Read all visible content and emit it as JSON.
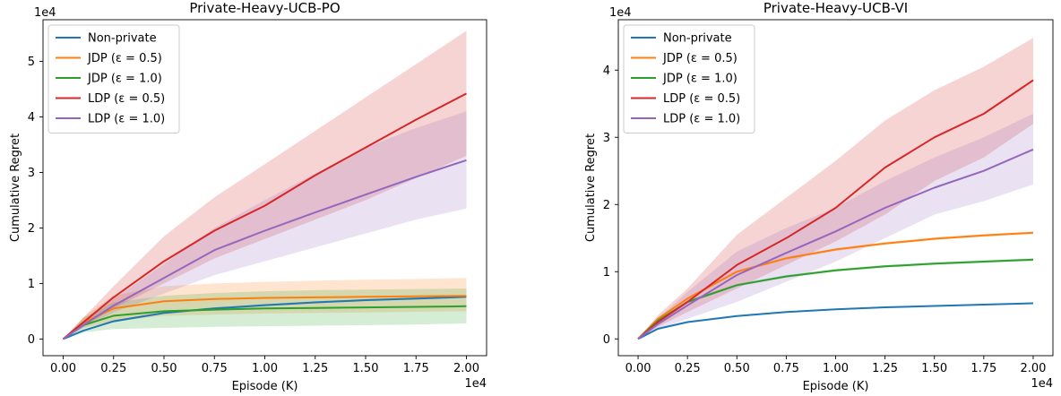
{
  "chart_data": [
    {
      "type": "line",
      "title": "Private-Heavy-UCB-PO",
      "xlabel": "Episode (K)",
      "ylabel": "Cumulative Regret",
      "x_multiplier": "1e4",
      "y_multiplier": "1e4",
      "xlim": [
        -0.1,
        2.1
      ],
      "ylim": [
        -0.3,
        5.75
      ],
      "xticks": [
        0.0,
        0.25,
        0.5,
        0.75,
        1.0,
        1.25,
        1.5,
        1.75,
        2.0
      ],
      "xtick_labels": [
        "0.00",
        "0.25",
        "0.50",
        "0.75",
        "1.00",
        "1.25",
        "1.50",
        "1.75",
        "2.00"
      ],
      "yticks": [
        0,
        1,
        2,
        3,
        4,
        5
      ],
      "ytick_labels": [
        "0",
        "1",
        "2",
        "3",
        "4",
        "5"
      ],
      "legend_position": "top-left",
      "x": [
        0.0,
        0.1,
        0.25,
        0.5,
        0.75,
        1.0,
        1.25,
        1.5,
        1.75,
        2.0
      ],
      "series": [
        {
          "name": "Non-private",
          "color": "#1f77b4",
          "values": [
            0,
            0.15,
            0.32,
            0.47,
            0.55,
            0.61,
            0.66,
            0.7,
            0.73,
            0.76
          ],
          "lower": [
            0,
            0.14,
            0.3,
            0.45,
            0.53,
            0.59,
            0.64,
            0.68,
            0.71,
            0.74
          ],
          "upper": [
            0,
            0.16,
            0.34,
            0.49,
            0.57,
            0.63,
            0.68,
            0.72,
            0.75,
            0.78
          ]
        },
        {
          "name": "JDP (ε = 0.5)",
          "color": "#ff7f0e",
          "values": [
            0,
            0.3,
            0.55,
            0.68,
            0.72,
            0.74,
            0.75,
            0.76,
            0.77,
            0.78
          ],
          "lower": [
            0,
            0.2,
            0.32,
            0.42,
            0.44,
            0.46,
            0.47,
            0.48,
            0.49,
            0.5
          ],
          "upper": [
            0,
            0.4,
            0.78,
            0.95,
            1.0,
            1.03,
            1.05,
            1.07,
            1.08,
            1.1
          ]
        },
        {
          "name": "JDP (ε = 1.0)",
          "color": "#2ca02c",
          "values": [
            0,
            0.25,
            0.42,
            0.5,
            0.53,
            0.55,
            0.56,
            0.57,
            0.58,
            0.59
          ],
          "lower": [
            0,
            0.12,
            0.18,
            0.2,
            0.22,
            0.23,
            0.24,
            0.25,
            0.26,
            0.28
          ],
          "upper": [
            0,
            0.38,
            0.66,
            0.78,
            0.83,
            0.86,
            0.88,
            0.89,
            0.9,
            0.91
          ]
        },
        {
          "name": "LDP (ε = 0.5)",
          "color": "#d62728",
          "values": [
            0,
            0.3,
            0.75,
            1.4,
            1.95,
            2.4,
            2.95,
            3.45,
            3.95,
            4.42
          ],
          "lower": [
            0,
            0.22,
            0.55,
            1.0,
            1.45,
            1.8,
            2.15,
            2.5,
            2.9,
            3.3
          ],
          "upper": [
            0,
            0.38,
            0.95,
            1.85,
            2.55,
            3.15,
            3.75,
            4.35,
            4.95,
            5.55
          ]
        },
        {
          "name": "LDP (ε = 1.0)",
          "color": "#9467bd",
          "values": [
            0,
            0.25,
            0.6,
            1.1,
            1.6,
            1.95,
            2.28,
            2.6,
            2.92,
            3.22
          ],
          "lower": [
            0,
            0.2,
            0.48,
            0.82,
            1.15,
            1.4,
            1.65,
            1.9,
            2.15,
            2.35
          ],
          "upper": [
            0,
            0.3,
            0.72,
            1.35,
            2.0,
            2.5,
            2.98,
            3.45,
            3.8,
            4.1
          ]
        }
      ]
    },
    {
      "type": "line",
      "title": "Private-Heavy-UCB-VI",
      "xlabel": "Episode (K)",
      "ylabel": "Cumulative Regret",
      "x_multiplier": "1e4",
      "y_multiplier": "1e4",
      "xlim": [
        -0.1,
        2.1
      ],
      "ylim": [
        -0.25,
        4.75
      ],
      "xticks": [
        0.0,
        0.25,
        0.5,
        0.75,
        1.0,
        1.25,
        1.5,
        1.75,
        2.0
      ],
      "xtick_labels": [
        "0.00",
        "0.25",
        "0.50",
        "0.75",
        "1.00",
        "1.25",
        "1.50",
        "1.75",
        "2.00"
      ],
      "yticks": [
        0,
        1,
        2,
        3,
        4
      ],
      "ytick_labels": [
        "0",
        "1",
        "2",
        "3",
        "4"
      ],
      "legend_position": "top-left",
      "x": [
        0.0,
        0.1,
        0.25,
        0.5,
        0.75,
        1.0,
        1.25,
        1.5,
        1.75,
        2.0
      ],
      "series": [
        {
          "name": "Non-private",
          "color": "#1f77b4",
          "values": [
            0,
            0.15,
            0.25,
            0.34,
            0.4,
            0.44,
            0.47,
            0.49,
            0.51,
            0.53
          ],
          "lower": [
            0,
            0.14,
            0.24,
            0.33,
            0.39,
            0.43,
            0.46,
            0.48,
            0.5,
            0.52
          ],
          "upper": [
            0,
            0.16,
            0.26,
            0.35,
            0.41,
            0.45,
            0.48,
            0.5,
            0.52,
            0.54
          ]
        },
        {
          "name": "JDP (ε = 0.5)",
          "color": "#ff7f0e",
          "values": [
            0,
            0.3,
            0.6,
            1.0,
            1.2,
            1.33,
            1.42,
            1.49,
            1.54,
            1.58
          ],
          "lower": [
            0,
            0.29,
            0.58,
            0.98,
            1.18,
            1.31,
            1.4,
            1.47,
            1.52,
            1.56
          ],
          "upper": [
            0,
            0.31,
            0.62,
            1.02,
            1.22,
            1.35,
            1.44,
            1.51,
            1.56,
            1.6
          ]
        },
        {
          "name": "JDP (ε = 1.0)",
          "color": "#2ca02c",
          "values": [
            0,
            0.27,
            0.55,
            0.8,
            0.93,
            1.02,
            1.08,
            1.12,
            1.15,
            1.18
          ],
          "lower": [
            0,
            0.26,
            0.53,
            0.78,
            0.91,
            1.0,
            1.06,
            1.1,
            1.13,
            1.16
          ],
          "upper": [
            0,
            0.28,
            0.57,
            0.82,
            0.95,
            1.04,
            1.1,
            1.14,
            1.17,
            1.2
          ]
        },
        {
          "name": "LDP (ε = 0.5)",
          "color": "#d62728",
          "values": [
            0,
            0.25,
            0.55,
            1.1,
            1.5,
            1.95,
            2.55,
            3.0,
            3.35,
            3.85
          ],
          "lower": [
            0,
            0.18,
            0.4,
            0.75,
            1.1,
            1.45,
            1.85,
            2.35,
            2.7,
            3.2
          ],
          "upper": [
            0,
            0.35,
            0.75,
            1.55,
            2.1,
            2.65,
            3.25,
            3.7,
            4.05,
            4.48
          ]
        },
        {
          "name": "LDP (ε = 1.0)",
          "color": "#9467bd",
          "values": [
            0,
            0.22,
            0.5,
            0.95,
            1.28,
            1.6,
            1.95,
            2.25,
            2.5,
            2.82
          ],
          "lower": [
            0,
            0.14,
            0.3,
            0.55,
            0.85,
            1.15,
            1.5,
            1.85,
            2.05,
            2.3
          ],
          "upper": [
            0,
            0.3,
            0.7,
            1.3,
            1.65,
            1.95,
            2.35,
            2.7,
            3.0,
            3.35
          ]
        }
      ]
    }
  ]
}
